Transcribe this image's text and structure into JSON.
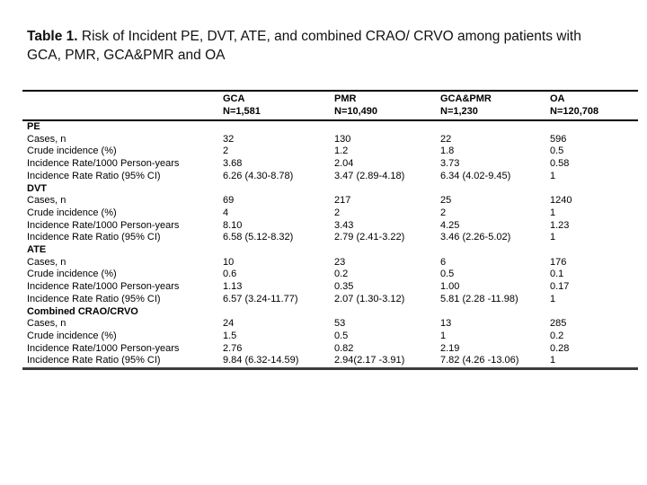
{
  "title": {
    "label": "Table 1.",
    "line1": "Risk of Incident PE, DVT, ATE, and combined CRAO/ CRVO among patients with",
    "line2": "GCA, PMR, GCA&PMR and OA"
  },
  "table": {
    "columns": [
      {
        "name": "GCA",
        "n": "N=1,581"
      },
      {
        "name": "PMR",
        "n": "N=10,490"
      },
      {
        "name": "GCA&PMR",
        "n": "N=1,230"
      },
      {
        "name": "OA",
        "n": "N=120,708"
      }
    ],
    "sections": [
      {
        "name": "PE",
        "rows": [
          {
            "label": "Cases, n",
            "values": [
              "32",
              "130",
              "22",
              "596"
            ]
          },
          {
            "label": "Crude incidence (%)",
            "values": [
              "2",
              "1.2",
              "1.8",
              "0.5"
            ]
          },
          {
            "label": "Incidence Rate/1000 Person-years",
            "values": [
              "3.68",
              "2.04",
              "3.73",
              "0.58"
            ]
          },
          {
            "label": "Incidence Rate Ratio (95% CI)",
            "values": [
              "6.26 (4.30-8.78)",
              "3.47 (2.89-4.18)",
              "6.34 (4.02-9.45)",
              "1"
            ]
          }
        ]
      },
      {
        "name": "DVT",
        "rows": [
          {
            "label": "Cases, n",
            "values": [
              "69",
              "217",
              "25",
              "1240"
            ]
          },
          {
            "label": "Crude incidence (%)",
            "values": [
              "4",
              "2",
              "2",
              "1"
            ]
          },
          {
            "label": "Incidence Rate/1000 Person-years",
            "values": [
              "8.10",
              "3.43",
              "4.25",
              "1.23"
            ]
          },
          {
            "label": "Incidence Rate Ratio (95% CI)",
            "values": [
              "6.58 (5.12-8.32)",
              "2.79 (2.41-3.22)",
              "3.46 (2.26-5.02)",
              "1"
            ]
          }
        ]
      },
      {
        "name": "ATE",
        "rows": [
          {
            "label": "Cases, n",
            "values": [
              "10",
              "23",
              "6",
              "176"
            ]
          },
          {
            "label": "Crude incidence (%)",
            "values": [
              "0.6",
              "0.2",
              "0.5",
              "0.1"
            ]
          },
          {
            "label": "Incidence Rate/1000 Person-years",
            "values": [
              "1.13",
              "0.35",
              "1.00",
              "0.17"
            ]
          },
          {
            "label": "Incidence Rate Ratio (95% CI)",
            "values": [
              "6.57 (3.24-11.77)",
              "2.07 (1.30-3.12)",
              "5.81 (2.28 -11.98)",
              "1"
            ]
          }
        ]
      },
      {
        "name": "Combined CRAO/CRVO",
        "rows": [
          {
            "label": "Cases, n",
            "values": [
              "24",
              "53",
              "13",
              "285"
            ]
          },
          {
            "label": "Crude incidence (%)",
            "values": [
              "1.5",
              "0.5",
              "1",
              "0.2"
            ]
          },
          {
            "label": "Incidence Rate/1000 Person-years",
            "values": [
              "2.76",
              "0.82",
              "2.19",
              "0.28"
            ]
          },
          {
            "label": "Incidence Rate Ratio (95% CI)",
            "values": [
              "9.84 (6.32-14.59)",
              "2.94(2.17 -3.91)",
              "7.82 (4.26 -13.06)",
              "1"
            ]
          }
        ]
      }
    ]
  }
}
